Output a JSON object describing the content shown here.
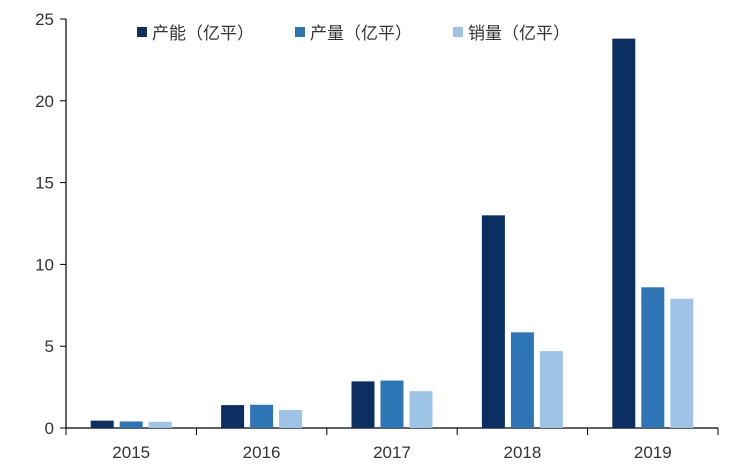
{
  "chart_data": {
    "type": "bar",
    "categories": [
      "2015",
      "2016",
      "2017",
      "2018",
      "2019"
    ],
    "series": [
      {
        "name": "产能（亿平）",
        "color": "#0b2f60",
        "values": [
          0.45,
          1.4,
          2.85,
          13.0,
          23.8
        ]
      },
      {
        "name": "产量（亿平）",
        "color": "#2e75b6",
        "values": [
          0.4,
          1.42,
          2.9,
          5.85,
          8.6
        ]
      },
      {
        "name": "销量（亿平）",
        "color": "#9dc3e6",
        "values": [
          0.38,
          1.1,
          2.25,
          4.7,
          7.9
        ]
      }
    ],
    "yticks": [
      "0",
      "5",
      "10",
      "15",
      "20",
      "25"
    ],
    "ylim": [
      0,
      25
    ],
    "xlabel": "",
    "ylabel": "",
    "grid": false,
    "legend": "top"
  }
}
